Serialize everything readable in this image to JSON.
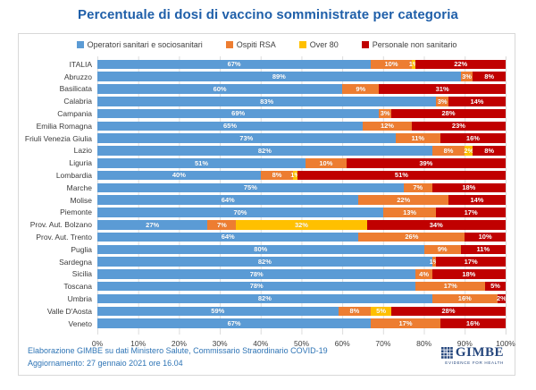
{
  "title": "Percentuale di dosi di vaccino somministrate per categoria",
  "legend": [
    {
      "label": "Operatori sanitari e sociosanitari",
      "color": "#5B9BD5"
    },
    {
      "label": "Ospiti RSA",
      "color": "#ED7D31"
    },
    {
      "label": "Over 80",
      "color": "#FFC000"
    },
    {
      "label": "Personale non sanitario",
      "color": "#C00000"
    }
  ],
  "chart_data": {
    "type": "bar",
    "orientation": "horizontal",
    "stacked": true,
    "title": "Percentuale di dosi di vaccino somministrate per categoria",
    "categories": [
      "ITALIA",
      "Abruzzo",
      "Basilicata",
      "Calabria",
      "Campania",
      "Emilia Romagna",
      "Friuli Venezia Giulia",
      "Lazio",
      "Liguria",
      "Lombardia",
      "Marche",
      "Molise",
      "Piemonte",
      "Prov. Aut. Bolzano",
      "Prov. Aut. Trento",
      "Puglia",
      "Sardegna",
      "Sicilia",
      "Toscana",
      "Umbria",
      "Valle D'Aosta",
      "Veneto"
    ],
    "series": [
      {
        "name": "Operatori sanitari e sociosanitari",
        "color": "#5B9BD5",
        "values": [
          67,
          89,
          60,
          83,
          69,
          65,
          73,
          82,
          51,
          40,
          75,
          64,
          70,
          27,
          64,
          80,
          82,
          78,
          78,
          82,
          59,
          67
        ]
      },
      {
        "name": "Ospiti RSA",
        "color": "#ED7D31",
        "values": [
          10,
          3,
          9,
          3,
          3,
          12,
          11,
          8,
          10,
          8,
          7,
          22,
          13,
          7,
          26,
          9,
          1,
          4,
          17,
          16,
          8,
          17
        ]
      },
      {
        "name": "Over 80",
        "color": "#FFC000",
        "values": [
          1,
          0,
          0,
          0,
          0,
          0,
          0,
          2,
          0,
          1,
          0,
          0,
          0,
          32,
          0,
          0,
          0,
          0,
          0,
          0,
          5,
          0
        ]
      },
      {
        "name": "Personale non sanitario",
        "color": "#C00000",
        "values": [
          22,
          8,
          31,
          14,
          28,
          23,
          16,
          8,
          39,
          51,
          18,
          14,
          17,
          34,
          10,
          11,
          17,
          18,
          5,
          2,
          28,
          16
        ]
      }
    ],
    "x_ticks": [
      "0%",
      "10%",
      "20%",
      "30%",
      "40%",
      "50%",
      "60%",
      "70%",
      "80%",
      "90%",
      "100%"
    ],
    "xlim": [
      0,
      100
    ],
    "value_suffix": "%",
    "data_labels": true,
    "grid": true,
    "legend_position": "top"
  },
  "footer": {
    "line1": "Elaborazione GIMBE su dati Ministero Salute, Commissario Straordinario COVID-19",
    "line2": "Aggiornamento: 27 gennaio 2021 ore 16.04"
  },
  "logo": {
    "name": "GIMBE",
    "tagline": "EVIDENCE FOR HEALTH",
    "color": "#26477D"
  }
}
